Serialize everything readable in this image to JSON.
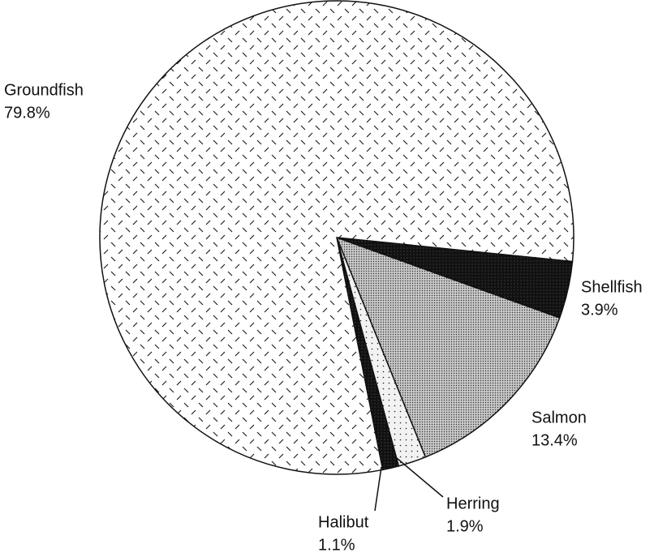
{
  "chart_data": {
    "type": "pie",
    "categories": [
      "Shellfish",
      "Salmon",
      "Herring",
      "Halibut",
      "Groundfish"
    ],
    "values": [
      3.9,
      13.4,
      1.9,
      1.1,
      79.8
    ],
    "value_labels": [
      "3.9%",
      "13.4%",
      "1.9%",
      "1.1%",
      "79.8%"
    ],
    "colors": [
      "#111111",
      "#c8c8c8",
      "#f2f2f2",
      "#111111",
      "#ffffff"
    ]
  }
}
